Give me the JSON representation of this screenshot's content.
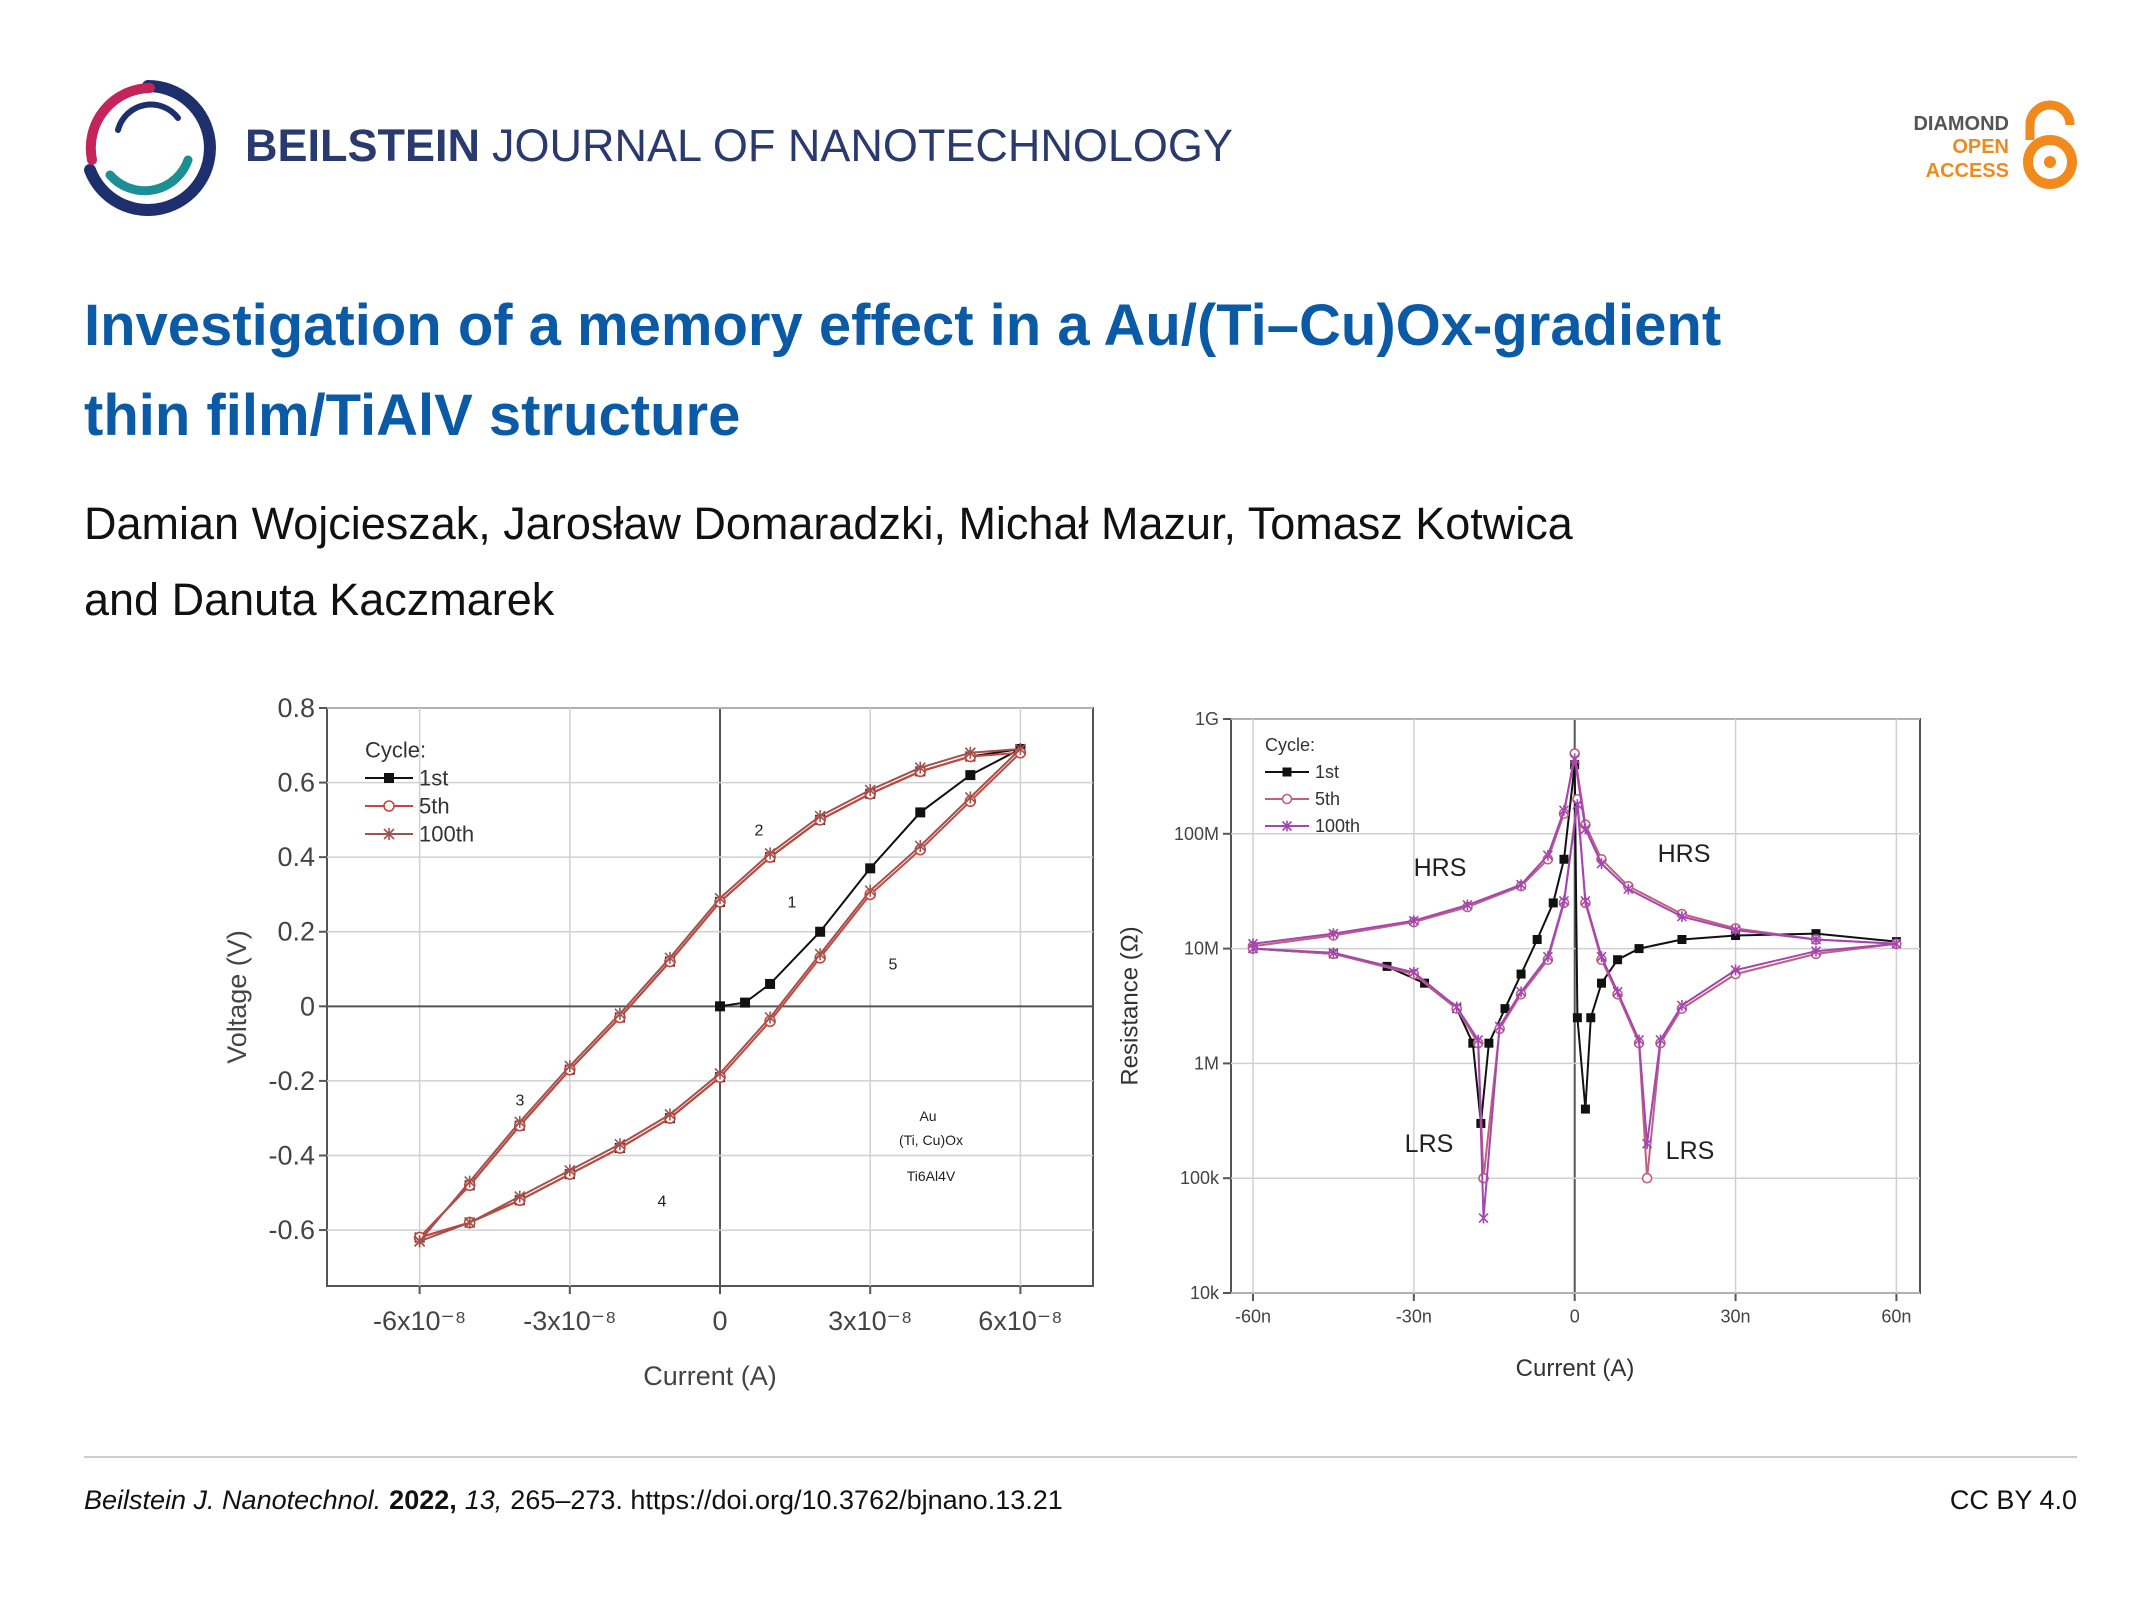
{
  "header": {
    "journal_bold": "BEILSTEIN",
    "journal_rest": "JOURNAL OF NANOTECHNOLOGY",
    "badge": [
      "DIAMOND",
      "OPEN",
      "ACCESS"
    ]
  },
  "title": [
    "Investigation of a memory effect in a Au/(Ti–Cu)Ox-gradient",
    "thin film/TiAlV structure"
  ],
  "authors": [
    "Damian Wojcieszak, Jarosław Domaradzki, Michał Mazur, Tomasz Kotwica",
    "and Danuta Kaczmarek"
  ],
  "chart_data": [
    {
      "type": "line",
      "xlabel": "Current (A)",
      "ylabel": "Voltage (V)",
      "xlim": [
        -7.85e-08,
        7.45e-08
      ],
      "ylim": [
        -0.75,
        0.8
      ],
      "xticks": [
        {
          "value": -6e-08,
          "label": "-6x10⁻⁸"
        },
        {
          "value": -3e-08,
          "label": "-3x10⁻⁸"
        },
        0,
        {
          "value": 3e-08,
          "label": "3x10⁻⁸"
        },
        {
          "value": 6e-08,
          "label": "6x10⁻⁸"
        }
      ],
      "yticks": [
        -0.6,
        -0.4,
        -0.2,
        0,
        0.2,
        0.4,
        0.6,
        0.8
      ],
      "grid": true,
      "legend": "upper left",
      "legend_title": "Cycle:",
      "annotations": [
        "1",
        "2",
        "3",
        "4",
        "5",
        "Au",
        "(Ti, Cu)Ox",
        "Ti6Al4V"
      ],
      "series": [
        {
          "name": "1st",
          "color": "#111111",
          "marker": "square",
          "x": [
            0,
            5e-09,
            1e-08,
            2e-08,
            3e-08,
            4e-08,
            5e-08,
            6e-08,
            5e-08,
            4e-08,
            3e-08,
            2e-08,
            1e-08,
            0,
            -1e-08,
            -2e-08,
            -3e-08,
            -4e-08,
            -5e-08,
            -6e-08,
            -5e-08,
            -4e-08,
            -3e-08,
            -2e-08,
            -1e-08,
            0
          ],
          "values": [
            0,
            0.01,
            0.06,
            0.2,
            0.37,
            0.52,
            0.62,
            0.69,
            0.67,
            0.63,
            0.57,
            0.5,
            0.4,
            0.28,
            0.12,
            -0.03,
            -0.17,
            -0.32,
            -0.48,
            -0.62,
            -0.58,
            -0.52,
            -0.45,
            -0.38,
            -0.3,
            -0.19
          ]
        },
        {
          "name": "5th",
          "color": "#c8463c",
          "marker": "circle",
          "x": [
            -6e-08,
            -5e-08,
            -4e-08,
            -3e-08,
            -2e-08,
            -1e-08,
            0,
            1e-08,
            2e-08,
            3e-08,
            4e-08,
            5e-08,
            6e-08,
            5e-08,
            4e-08,
            3e-08,
            2e-08,
            1e-08,
            0,
            -1e-08,
            -2e-08,
            -3e-08,
            -4e-08,
            -5e-08,
            -6e-08
          ],
          "values": [
            -0.62,
            -0.58,
            -0.52,
            -0.45,
            -0.38,
            -0.3,
            -0.19,
            -0.04,
            0.13,
            0.3,
            0.42,
            0.55,
            0.68,
            0.67,
            0.63,
            0.57,
            0.5,
            0.4,
            0.28,
            0.12,
            -0.03,
            -0.17,
            -0.32,
            -0.48,
            -0.62
          ]
        },
        {
          "name": "100th",
          "color": "#a0524e",
          "marker": "star",
          "x": [
            -6e-08,
            -5e-08,
            -4e-08,
            -3e-08,
            -2e-08,
            -1e-08,
            0,
            1e-08,
            2e-08,
            3e-08,
            4e-08,
            5e-08,
            6e-08,
            5e-08,
            4e-08,
            3e-08,
            2e-08,
            1e-08,
            0,
            -1e-08,
            -2e-08,
            -3e-08,
            -4e-08,
            -5e-08,
            -6e-08
          ],
          "values": [
            -0.63,
            -0.58,
            -0.51,
            -0.44,
            -0.37,
            -0.29,
            -0.18,
            -0.03,
            0.14,
            0.31,
            0.43,
            0.56,
            0.69,
            0.68,
            0.64,
            0.58,
            0.51,
            0.41,
            0.29,
            0.13,
            -0.02,
            -0.16,
            -0.31,
            -0.47,
            -0.63
          ]
        }
      ]
    },
    {
      "type": "line",
      "xlabel": "Current (A)",
      "ylabel": "Resistance (Ω)",
      "log_y": true,
      "xlim": [
        -6.41e-08,
        6.44e-08
      ],
      "ylim": [
        10000,
        1000000000
      ],
      "xticks": [
        {
          "value": -6e-08,
          "label": "-60n"
        },
        {
          "value": -3e-08,
          "label": "-30n"
        },
        0,
        {
          "value": 3e-08,
          "label": "30n"
        },
        {
          "value": 6e-08,
          "label": "60n"
        }
      ],
      "yticks": [
        {
          "value": 10000,
          "label": "10k"
        },
        {
          "value": 100000,
          "label": "100k"
        },
        {
          "value": 1000000,
          "label": "1M"
        },
        {
          "value": 10000000,
          "label": "10M"
        },
        {
          "value": 100000000,
          "label": "100M"
        },
        {
          "value": 1000000000,
          "label": "1G"
        }
      ],
      "grid": true,
      "legend": "upper left",
      "legend_title": "Cycle:",
      "annotations": [
        "HRS",
        "HRS",
        "LRS",
        "LRS"
      ],
      "series": [
        {
          "name": "1st",
          "color": "#111111",
          "marker": "square",
          "x": [
            -6e-08,
            -4.5e-08,
            -3.5e-08,
            -2.8e-08,
            -2.2e-08,
            -1.9e-08,
            -1.75e-08,
            -1.6e-08,
            -1.3e-08,
            -1e-08,
            -7e-09,
            -4e-09,
            -2e-09,
            0,
            5e-10,
            2e-09,
            3e-09,
            5e-09,
            8e-09,
            1.2e-08,
            2e-08,
            3e-08,
            4.5e-08,
            6e-08
          ],
          "values": [
            10000000,
            9000000,
            7000000,
            5000000,
            3000000,
            1500000,
            300000,
            1500000,
            3000000,
            6000000,
            12000000,
            25000000,
            60000000,
            400000000,
            2500000,
            400000,
            2500000,
            5000000,
            8000000,
            10000000,
            12000000,
            13000000,
            13500000,
            11500000
          ]
        },
        {
          "name": "5th",
          "color": "#c0607a",
          "marker": "circle",
          "x": [
            -6e-08,
            -4.5e-08,
            -3e-08,
            -2e-08,
            -1e-08,
            -5e-09,
            -2e-09,
            0,
            2e-09,
            5e-09,
            1e-08,
            2e-08,
            3e-08,
            4.5e-08,
            6e-08,
            4.5e-08,
            3e-08,
            2e-08,
            1.6e-08,
            1.35e-08,
            1.2e-08,
            8e-09,
            5e-09,
            2e-09,
            5e-10,
            -2e-09,
            -5e-09,
            -1e-08,
            -1.4e-08,
            -1.7e-08,
            -1.8e-08,
            -2.2e-08,
            -3e-08,
            -4.5e-08,
            -6e-08
          ],
          "values": [
            10500000,
            13000000,
            17000000,
            23000000,
            35000000,
            60000000,
            150000000,
            500000000,
            120000000,
            60000000,
            35000000,
            20000000,
            15000000,
            12000000,
            11000000,
            9000000,
            6000000,
            3000000,
            1500000,
            100000,
            1500000,
            4000000,
            8000000,
            25000000,
            200000000,
            25000000,
            8000000,
            4000000,
            2000000,
            100000,
            1500000,
            3000000,
            6000000,
            9000000,
            10000000
          ]
        },
        {
          "name": "100th",
          "color": "#a346b4",
          "marker": "star",
          "x": [
            -6e-08,
            -4.5e-08,
            -3e-08,
            -2e-08,
            -1e-08,
            -5e-09,
            -2e-09,
            0,
            2e-09,
            5e-09,
            1e-08,
            2e-08,
            3e-08,
            4.5e-08,
            6e-08,
            4.5e-08,
            3e-08,
            2e-08,
            1.6e-08,
            1.35e-08,
            1.2e-08,
            8e-09,
            5e-09,
            2e-09,
            5e-10,
            -2e-09,
            -5e-09,
            -1e-08,
            -1.4e-08,
            -1.7e-08,
            -1.8e-08,
            -2.2e-08,
            -3e-08,
            -4.5e-08,
            -6e-08
          ],
          "values": [
            11000000,
            13500000,
            17500000,
            24000000,
            36000000,
            65000000,
            160000000,
            450000000,
            110000000,
            55000000,
            33000000,
            19000000,
            14500000,
            12000000,
            11000000,
            9500000,
            6500000,
            3200000,
            1600000,
            200000,
            1600000,
            4200000,
            8500000,
            26000000,
            180000000,
            26000000,
            8500000,
            4200000,
            2100000,
            45000,
            1600000,
            3100000,
            6200000,
            9200000,
            10000000
          ]
        }
      ]
    }
  ],
  "footer": {
    "journal": "Beilstein J. Nanotechnol.",
    "year": "2022,",
    "volume": "13,",
    "rest": "265–273. https://doi.org/10.3762/bjnano.13.21",
    "license": "CC BY 4.0"
  }
}
